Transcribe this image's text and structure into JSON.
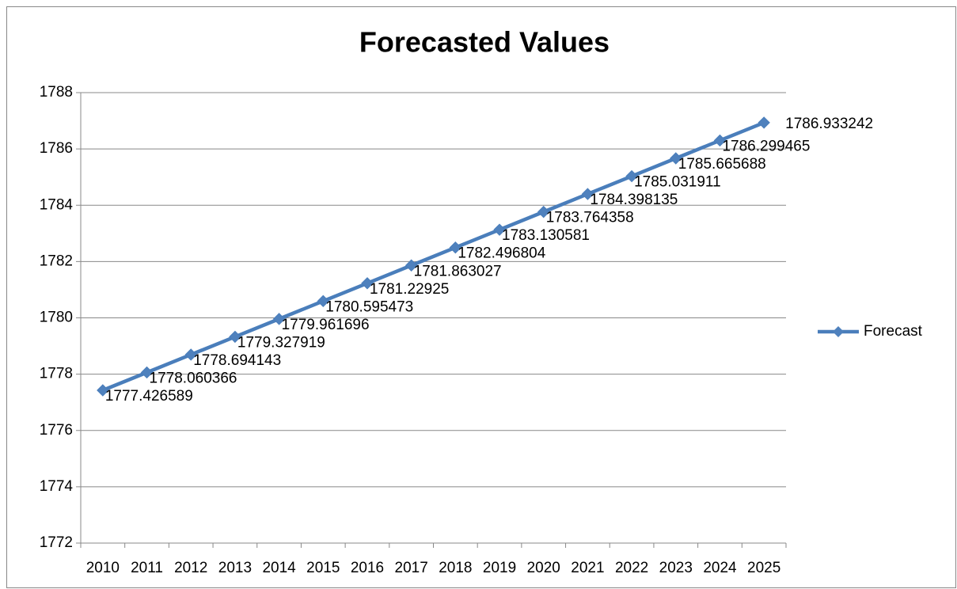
{
  "chart_data": {
    "type": "line",
    "title": "Forecasted Values",
    "categories": [
      "2010",
      "2011",
      "2012",
      "2013",
      "2014",
      "2015",
      "2016",
      "2017",
      "2018",
      "2019",
      "2020",
      "2021",
      "2022",
      "2023",
      "2024",
      "2025"
    ],
    "series": [
      {
        "name": "Forecast",
        "color": "#4a7ebb",
        "values": [
          1777.426589,
          1778.060366,
          1778.694143,
          1779.327919,
          1779.961696,
          1780.595473,
          1781.22925,
          1781.863027,
          1782.496804,
          1783.130581,
          1783.764358,
          1784.398135,
          1785.031911,
          1785.665688,
          1786.299465,
          1786.933242
        ]
      }
    ],
    "ylim": [
      1772,
      1788
    ],
    "yticks": [
      1772,
      1774,
      1776,
      1778,
      1780,
      1782,
      1784,
      1786,
      1788
    ],
    "grid": true,
    "legend": "right"
  }
}
